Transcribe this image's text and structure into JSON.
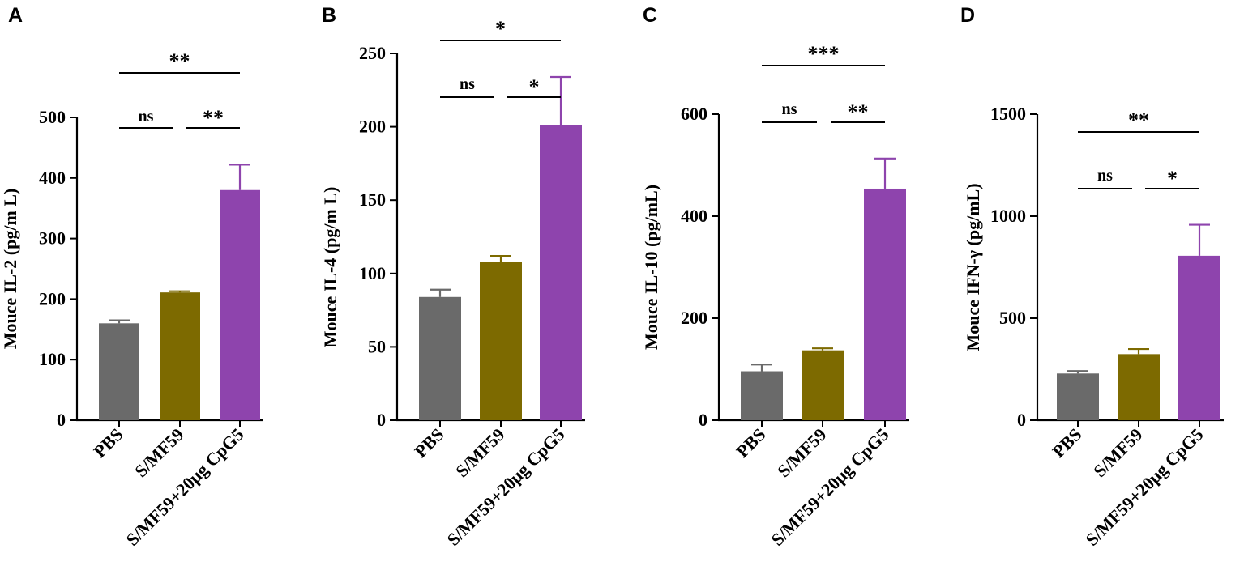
{
  "figure": {
    "colors": {
      "PBS": "#6a6a6a",
      "S/MF59": "#7d6a00",
      "S/MF59+20μg CpG5": "#8e44ad",
      "axis": "#000000"
    }
  },
  "chart_data": [
    {
      "panel": "A",
      "type": "bar",
      "ylabel": "Mouce IL-2 (pg/m L)",
      "categories": [
        "PBS",
        "S/MF59",
        "S/MF59+20μg CpG5"
      ],
      "values": [
        160,
        211,
        380
      ],
      "errors": [
        5,
        2,
        42
      ],
      "ylim": [
        0,
        500
      ],
      "yticks": [
        0,
        100,
        200,
        300,
        400,
        500
      ],
      "significance": [
        {
          "from": 0,
          "to": 1,
          "label": "ns",
          "level": 0
        },
        {
          "from": 1,
          "to": 2,
          "label": "**",
          "level": 0
        },
        {
          "from": 0,
          "to": 2,
          "label": "**",
          "level": 1
        }
      ]
    },
    {
      "panel": "B",
      "type": "bar",
      "ylabel": "Mouce IL-4 (pg/m L)",
      "categories": [
        "PBS",
        "S/MF59",
        "S/MF59+20μg CpG5"
      ],
      "values": [
        84,
        108,
        201
      ],
      "errors": [
        5,
        4,
        33
      ],
      "ylim": [
        0,
        250
      ],
      "yticks": [
        0,
        50,
        100,
        150,
        200,
        250
      ],
      "significance": [
        {
          "from": 0,
          "to": 1,
          "label": "ns",
          "level": 0
        },
        {
          "from": 1,
          "to": 2,
          "label": "*",
          "level": 0
        },
        {
          "from": 0,
          "to": 2,
          "label": "*",
          "level": 1
        }
      ]
    },
    {
      "panel": "C",
      "type": "bar",
      "ylabel": "Mouce IL-10 (pg/mL)",
      "categories": [
        "PBS",
        "S/MF59",
        "S/MF59+20μg CpG5"
      ],
      "values": [
        96,
        137,
        454
      ],
      "errors": [
        13,
        4,
        59
      ],
      "ylim": [
        0,
        600
      ],
      "yticks": [
        0,
        200,
        400,
        600
      ],
      "significance": [
        {
          "from": 0,
          "to": 1,
          "label": "ns",
          "level": 0
        },
        {
          "from": 1,
          "to": 2,
          "label": "**",
          "level": 0
        },
        {
          "from": 0,
          "to": 2,
          "label": "***",
          "level": 1
        }
      ]
    },
    {
      "panel": "D",
      "type": "bar",
      "ylabel": "Mouce IFN-γ (pg/mL)",
      "categories": [
        "PBS",
        "S/MF59",
        "S/MF59+20μg CpG5"
      ],
      "values": [
        229,
        324,
        806
      ],
      "errors": [
        12,
        25,
        152
      ],
      "ylim": [
        0,
        1500
      ],
      "yticks": [
        0,
        500,
        1000,
        1500
      ],
      "significance": [
        {
          "from": 0,
          "to": 1,
          "label": "ns",
          "level": 0
        },
        {
          "from": 1,
          "to": 2,
          "label": "*",
          "level": 0
        },
        {
          "from": 0,
          "to": 2,
          "label": "**",
          "level": 1
        }
      ]
    }
  ]
}
